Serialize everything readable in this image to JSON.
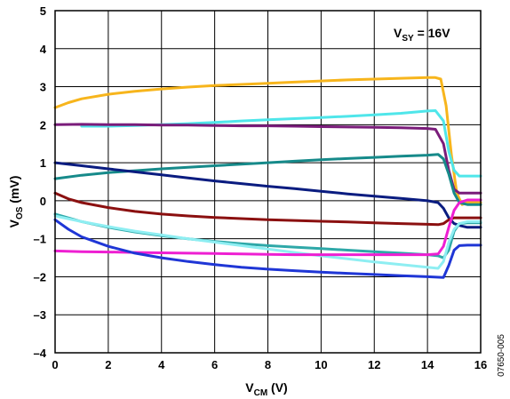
{
  "chart_data": {
    "type": "line",
    "title": "",
    "xlabel": {
      "main": "V",
      "sub": "CM",
      "unit": " (V)"
    },
    "ylabel": {
      "main": "V",
      "sub": "OS",
      "unit": " (mV)"
    },
    "xlim": [
      0,
      16
    ],
    "ylim": [
      -4,
      5
    ],
    "xticks": [
      0,
      2,
      4,
      6,
      8,
      10,
      12,
      14,
      16
    ],
    "yticks": [
      -4,
      -3,
      -2,
      -1,
      0,
      1,
      2,
      3,
      4,
      5
    ],
    "xtick_labels": [
      "0",
      "2",
      "4",
      "6",
      "8",
      "10",
      "12",
      "14",
      "16"
    ],
    "ytick_labels": [
      "–4",
      "–3",
      "–2",
      "–1",
      "0",
      "1",
      "2",
      "3",
      "4",
      "5"
    ],
    "grid": true,
    "annotation": {
      "main": "V",
      "sub": "SY",
      "rest": " = 16V"
    },
    "figure_id": "07650-005",
    "series": [
      {
        "color": "#F7B51C",
        "x": [
          0,
          0.5,
          1,
          2,
          3,
          4,
          5,
          6,
          7,
          8,
          9,
          10,
          11,
          12,
          13,
          14,
          14.3,
          14.5,
          14.7,
          14.9,
          15.1,
          15.3,
          15.5,
          16
        ],
        "y": [
          2.45,
          2.58,
          2.68,
          2.8,
          2.88,
          2.94,
          2.99,
          3.03,
          3.06,
          3.09,
          3.12,
          3.15,
          3.18,
          3.2,
          3.22,
          3.24,
          3.24,
          3.2,
          2.5,
          1.2,
          0.2,
          -0.1,
          -0.05,
          -0.05
        ]
      },
      {
        "color": "#4FE6EA",
        "x": [
          1,
          2,
          2.5,
          3,
          4,
          5,
          6,
          7,
          8,
          9,
          10,
          11,
          12,
          13,
          14,
          14.3,
          14.6,
          14.8,
          15,
          15.2,
          15.5,
          16
        ],
        "y": [
          1.96,
          1.96,
          1.97,
          1.98,
          2.0,
          2.03,
          2.06,
          2.1,
          2.13,
          2.16,
          2.19,
          2.22,
          2.26,
          2.3,
          2.36,
          2.37,
          2.1,
          1.3,
          0.8,
          0.65,
          0.65,
          0.65
        ]
      },
      {
        "color": "#7A1C7A",
        "x": [
          0,
          1,
          2,
          3,
          4,
          5,
          6,
          7,
          8,
          9,
          10,
          11,
          12,
          13,
          14,
          14.3,
          14.6,
          14.8,
          15,
          15.2,
          15.5,
          16
        ],
        "y": [
          2.0,
          2.01,
          2.0,
          2.0,
          1.99,
          1.99,
          1.98,
          1.97,
          1.97,
          1.96,
          1.95,
          1.94,
          1.93,
          1.92,
          1.9,
          1.88,
          1.5,
          0.8,
          0.3,
          0.2,
          0.2,
          0.2
        ]
      },
      {
        "color": "#168A8A",
        "x": [
          0,
          1,
          2,
          3,
          4,
          5,
          6,
          7,
          8,
          9,
          10,
          11,
          12,
          13,
          14,
          14.4,
          14.6,
          14.8,
          15,
          15.2,
          15.5,
          16
        ],
        "y": [
          0.58,
          0.67,
          0.74,
          0.79,
          0.84,
          0.88,
          0.92,
          0.96,
          1.0,
          1.04,
          1.08,
          1.11,
          1.14,
          1.17,
          1.2,
          1.22,
          1.1,
          0.7,
          0.2,
          -0.05,
          -0.1,
          -0.1
        ]
      },
      {
        "color": "#0A1C80",
        "x": [
          0,
          1,
          2,
          3,
          4,
          5,
          6,
          7,
          8,
          9,
          10,
          11,
          12,
          13,
          14,
          14.4,
          14.6,
          14.8,
          15,
          15.2,
          15.5,
          16
        ],
        "y": [
          1.0,
          0.92,
          0.84,
          0.76,
          0.68,
          0.6,
          0.52,
          0.45,
          0.38,
          0.32,
          0.25,
          0.18,
          0.12,
          0.06,
          0.0,
          -0.05,
          -0.2,
          -0.45,
          -0.6,
          -0.65,
          -0.7,
          -0.7
        ]
      },
      {
        "color": "#8B1010",
        "x": [
          0,
          0.5,
          1,
          2,
          3,
          4,
          5,
          6,
          7,
          8,
          9,
          10,
          11,
          12,
          13,
          14,
          14.4,
          14.6,
          14.8,
          15,
          15.2,
          15.5,
          16
        ],
        "y": [
          0.2,
          0.05,
          -0.05,
          -0.18,
          -0.28,
          -0.35,
          -0.4,
          -0.44,
          -0.47,
          -0.5,
          -0.52,
          -0.54,
          -0.56,
          -0.58,
          -0.6,
          -0.62,
          -0.63,
          -0.6,
          -0.5,
          -0.45,
          -0.45,
          -0.45,
          -0.45
        ]
      },
      {
        "color": "#2EA8A8",
        "x": [
          0,
          1,
          2,
          3,
          4,
          5,
          6,
          7,
          8,
          9,
          10,
          11,
          12,
          13,
          14,
          14.4,
          14.6,
          14.8,
          15,
          15.2,
          15.5,
          16
        ],
        "y": [
          -0.35,
          -0.55,
          -0.7,
          -0.82,
          -0.92,
          -1.0,
          -1.07,
          -1.13,
          -1.18,
          -1.22,
          -1.26,
          -1.3,
          -1.34,
          -1.38,
          -1.42,
          -1.45,
          -1.5,
          -1.3,
          -0.8,
          -0.6,
          -0.58,
          -0.58
        ]
      },
      {
        "color": "#8EEEF2",
        "x": [
          0,
          1,
          2,
          3,
          4,
          5,
          6,
          7,
          8,
          9,
          10,
          11,
          12,
          13,
          14,
          14.4,
          14.6,
          14.8,
          15,
          15.2,
          15.5,
          16
        ],
        "y": [
          -0.4,
          -0.55,
          -0.68,
          -0.8,
          -0.9,
          -1.0,
          -1.09,
          -1.18,
          -1.27,
          -1.36,
          -1.45,
          -1.53,
          -1.61,
          -1.68,
          -1.75,
          -1.78,
          -1.6,
          -1.1,
          -0.75,
          -0.6,
          -0.55,
          -0.55
        ]
      },
      {
        "color": "#EE1FD2",
        "x": [
          0,
          1,
          2,
          3,
          4,
          5,
          6,
          7,
          8,
          9,
          10,
          11,
          12,
          13,
          14,
          14.4,
          14.6,
          14.8,
          15,
          15.2,
          15.5,
          16
        ],
        "y": [
          -1.32,
          -1.34,
          -1.35,
          -1.36,
          -1.37,
          -1.38,
          -1.39,
          -1.4,
          -1.41,
          -1.42,
          -1.42,
          -1.42,
          -1.42,
          -1.42,
          -1.42,
          -1.4,
          -1.2,
          -0.7,
          -0.25,
          -0.05,
          0.02,
          0.02
        ]
      },
      {
        "color": "#1F36D6",
        "x": [
          0,
          0.5,
          1,
          2,
          3,
          4,
          5,
          6,
          7,
          8,
          9,
          10,
          11,
          12,
          13,
          14,
          14.6,
          14.8,
          15,
          15.2,
          15.5,
          16
        ],
        "y": [
          -0.5,
          -0.75,
          -0.95,
          -1.2,
          -1.38,
          -1.5,
          -1.6,
          -1.68,
          -1.75,
          -1.8,
          -1.84,
          -1.88,
          -1.91,
          -1.94,
          -1.97,
          -2.0,
          -2.02,
          -1.7,
          -1.3,
          -1.18,
          -1.17,
          -1.17
        ]
      }
    ]
  }
}
